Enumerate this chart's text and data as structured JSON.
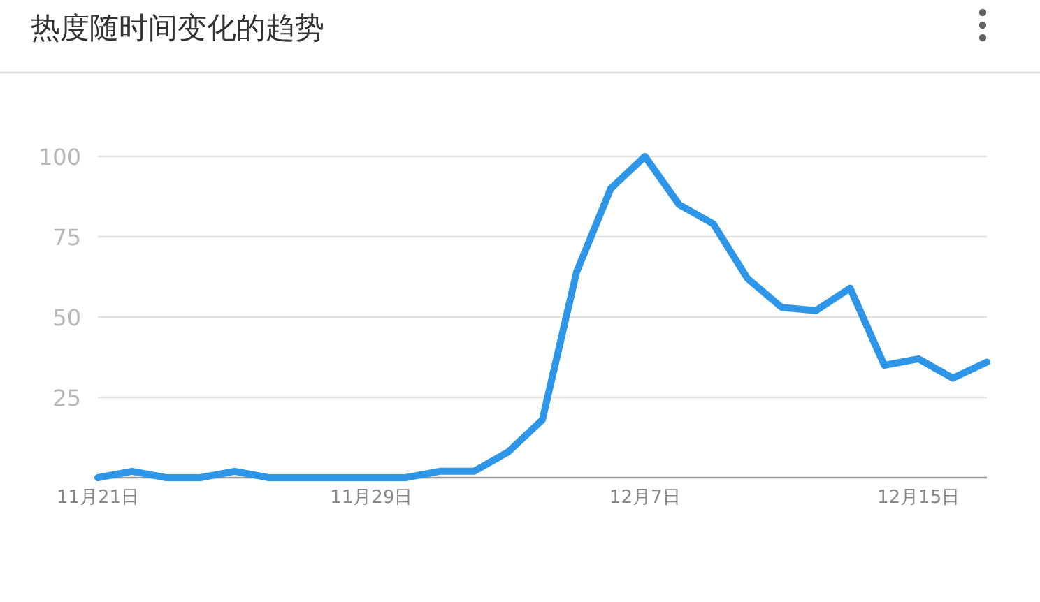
{
  "chart_data": {
    "type": "line",
    "title": "热度随时间变化的趋势",
    "x": [
      "--11-21",
      "--11-22",
      "--11-23",
      "--11-24",
      "--11-25",
      "--11-26",
      "--11-27",
      "--11-28",
      "--11-29",
      "--11-30",
      "--12-01",
      "--12-02",
      "--12-03",
      "--12-04",
      "--12-05",
      "--12-06",
      "--12-07",
      "--12-08",
      "--12-09",
      "--12-10",
      "--12-11",
      "--12-12",
      "--12-13",
      "--12-14",
      "--12-15",
      "--12-16",
      "--12-17"
    ],
    "series": [
      {
        "color": "#2e96e8",
        "values": [
          0,
          2,
          0,
          0,
          2,
          0,
          0,
          0,
          0,
          0,
          2,
          2,
          8,
          18,
          64,
          90,
          100,
          85,
          79,
          62,
          53,
          52,
          59,
          35,
          37,
          31,
          36
        ]
      }
    ],
    "xlim": [
      "--11-21",
      "--12-17"
    ],
    "xticks": [
      {
        "value": "--11-21",
        "label": "11月21日"
      },
      {
        "value": "--11-29",
        "label": "11月29日"
      },
      {
        "value": "--12-07",
        "label": "12月7日"
      },
      {
        "value": "--12-15",
        "label": "12月15日"
      }
    ],
    "ylim": [
      0,
      100
    ],
    "yticks": [
      25,
      50,
      75,
      100
    ],
    "grid": "y",
    "marker": "none",
    "line_style": "solid"
  }
}
